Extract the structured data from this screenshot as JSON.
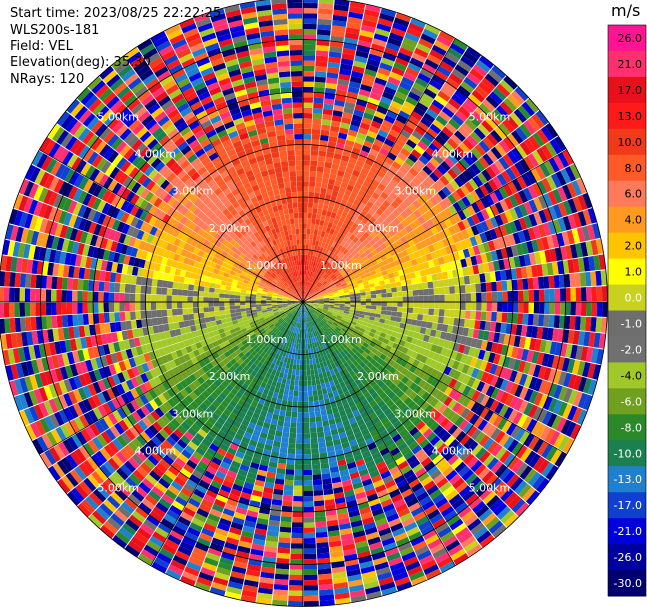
{
  "header": {
    "start_time": "Start time: 2023/08/25 22:22:25",
    "instrument": "WLS200s-181",
    "field": "Field: VEL",
    "elevation": "Elevation(deg): 35.30",
    "nrays": "NRays: 120"
  },
  "chart_data": {
    "type": "heatmap",
    "projection": "polar-ppi",
    "rays": 120,
    "range_rings": [
      {
        "range_km": 1.0,
        "label": "1.00km"
      },
      {
        "range_km": 2.0,
        "label": "2.00km"
      },
      {
        "range_km": 3.0,
        "label": "3.00km"
      },
      {
        "range_km": 4.0,
        "label": "4.00km"
      },
      {
        "range_km": 5.0,
        "label": "5.00km"
      }
    ],
    "max_range_km": 5.8,
    "colorbar": {
      "unit": "m/s",
      "ticks": [
        "26.0",
        "21.0",
        "17.0",
        "13.0",
        "10.0",
        "8.0",
        "6.0",
        "4.0",
        "2.0",
        "1.0",
        "0.0",
        "-1.0",
        "-2.0",
        "-4.0",
        "-6.0",
        "-8.0",
        "-10.0",
        "-13.0",
        "-17.0",
        "-21.0",
        "-26.0",
        "-30.0"
      ],
      "colors": [
        "#ff1493",
        "#ff3070",
        "#e8101a",
        "#ff1a1a",
        "#f03a1a",
        "#ff5a28",
        "#ff7a5a",
        "#ff9a20",
        "#ffc400",
        "#ffff00",
        "#c8d020",
        "#6e6e6e",
        "#707070",
        "#a0c828",
        "#6fa020",
        "#2a8a2a",
        "#1a8050",
        "#2080d0",
        "#1040d0",
        "#0000dd",
        "#0000a0",
        "#000070",
        "#202070"
      ]
    },
    "pattern_summary": {
      "north": "positive velocities (red/orange) near origin",
      "east_west": "near zero (gray/yellow)",
      "south": "negative velocities (blue/green)",
      "outer": "noisy high-variance returns"
    }
  }
}
